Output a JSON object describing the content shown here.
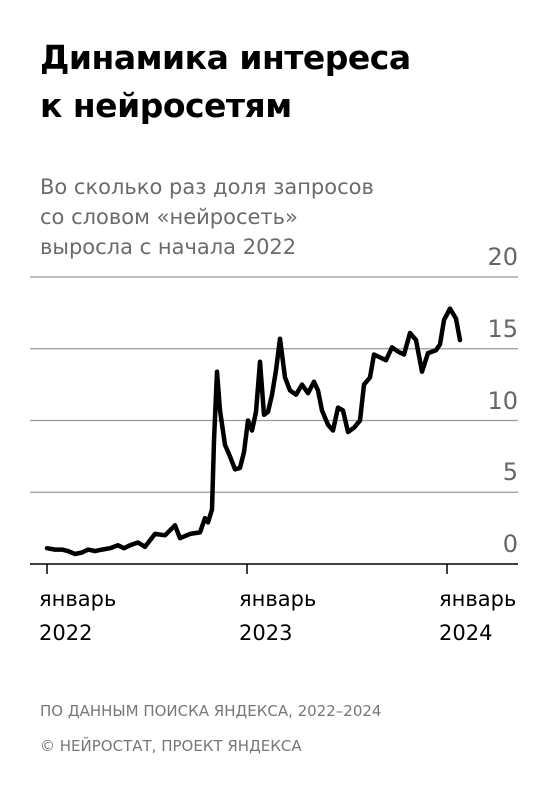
{
  "chart_data": {
    "type": "line",
    "title": "Динамика интереса\nк нейросетям",
    "subtitle": "Во сколько раз доля запросов\nсо словом «нейросеть»\nвыросла с начала 2022",
    "source": "ПО ДАННЫМ ПОИСКА ЯНДЕКСА, 2022–2024",
    "copyright": "© НЕЙРОСТАТ, ПРОЕКТ ЯНДЕКСА",
    "x": [
      2022.0,
      2022.04,
      2022.075,
      2022.105,
      2022.14,
      2022.175,
      2022.205,
      2022.24,
      2022.275,
      2022.315,
      2022.355,
      2022.385,
      2022.415,
      2022.455,
      2022.49,
      2022.54,
      2022.59,
      2022.64,
      2022.665,
      2022.715,
      2022.765,
      2022.79,
      2022.805,
      2022.825,
      2022.835,
      2022.85,
      2022.865,
      2022.89,
      2022.915,
      2022.94,
      2022.965,
      2022.985,
      2023.005,
      2023.025,
      2023.045,
      2023.065,
      2023.085,
      2023.105,
      2023.125,
      2023.145,
      2023.165,
      2023.19,
      2023.215,
      2023.245,
      2023.275,
      2023.305,
      2023.335,
      2023.355,
      2023.375,
      2023.405,
      2023.43,
      2023.455,
      2023.48,
      2023.505,
      2023.535,
      2023.565,
      2023.585,
      2023.615,
      2023.635,
      2023.665,
      2023.695,
      2023.725,
      2023.755,
      2023.785,
      2023.815,
      2023.845,
      2023.875,
      2023.905,
      2023.945,
      2023.965,
      2023.985,
      2024.015,
      2024.045,
      2024.065
    ],
    "series": [
      {
        "color": "#000000",
        "values": [
          1.1,
          1.0,
          1.0,
          0.9,
          0.7,
          0.8,
          1.0,
          0.9,
          1.0,
          1.1,
          1.3,
          1.1,
          1.3,
          1.5,
          1.2,
          2.1,
          2.0,
          2.7,
          1.8,
          2.1,
          2.2,
          3.2,
          2.9,
          3.8,
          8.6,
          13.4,
          10.7,
          8.3,
          7.5,
          6.6,
          6.7,
          7.8,
          10.0,
          9.3,
          10.6,
          14.1,
          10.4,
          10.6,
          11.8,
          13.5,
          15.7,
          13.0,
          12.1,
          11.8,
          12.5,
          11.9,
          12.7,
          12.1,
          10.7,
          9.7,
          9.3,
          10.9,
          10.7,
          9.2,
          9.5,
          10.0,
          12.5,
          13.0,
          14.6,
          14.4,
          14.2,
          15.1,
          14.8,
          14.6,
          16.1,
          15.6,
          13.4,
          14.7,
          14.9,
          15.3,
          17.0,
          17.8,
          17.1,
          15.6
        ]
      }
    ],
    "xlim": [
      2021.915,
      2024.355
    ],
    "xticks": [
      {
        "value": 2022,
        "label": "январь\n2022"
      },
      {
        "value": 2023,
        "label": "январь\n2023"
      },
      {
        "value": 2024,
        "label": "январь\n2024"
      }
    ],
    "ylim": [
      0,
      20
    ],
    "yticks": [
      0,
      5,
      10,
      15,
      20
    ],
    "grid": true
  }
}
